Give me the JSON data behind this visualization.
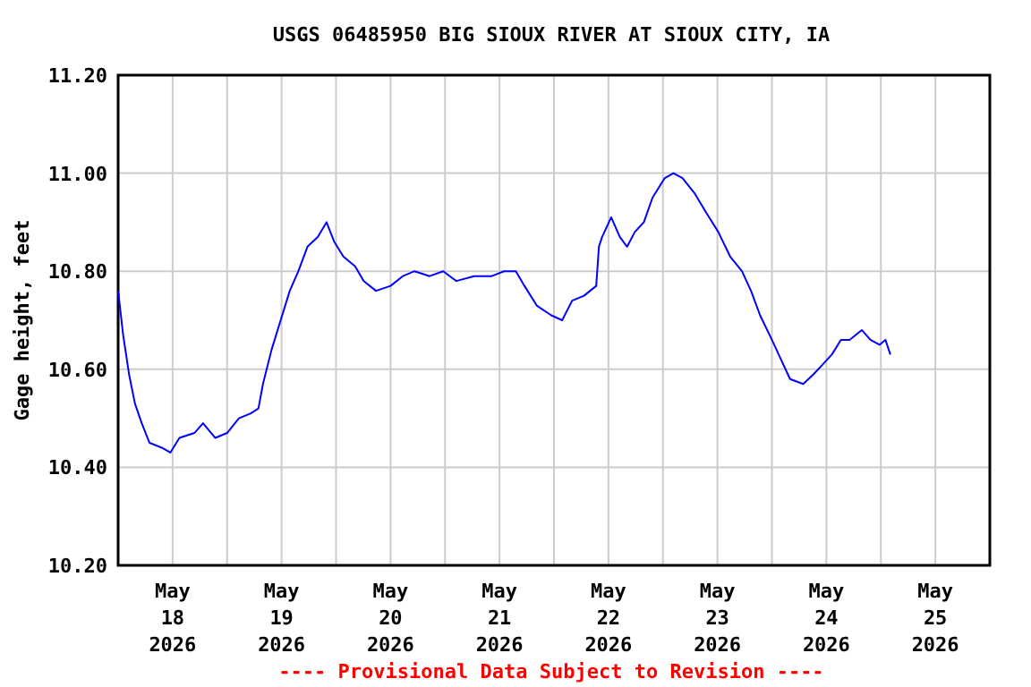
{
  "chart_data": {
    "type": "line",
    "title": "USGS 06485950 BIG SIOUX RIVER AT SIOUX CITY,  IA",
    "ylabel": "Gage height, feet",
    "annotations": [
      "---- Provisional Data Subject to Revision ----"
    ],
    "xlim": [
      "2026-05-18T00:00",
      "2026-05-26T00:00"
    ],
    "xticks": [
      {
        "value": "2026-05-18T00:00",
        "label": null
      },
      {
        "value": "2026-05-18T12:00",
        "label": "May\n18\n2026"
      },
      {
        "value": "2026-05-19T00:00",
        "label": null
      },
      {
        "value": "2026-05-19T12:00",
        "label": "May\n19\n2026"
      },
      {
        "value": "2026-05-20T00:00",
        "label": null
      },
      {
        "value": "2026-05-20T12:00",
        "label": "May\n20\n2026"
      },
      {
        "value": "2026-05-21T00:00",
        "label": null
      },
      {
        "value": "2026-05-21T12:00",
        "label": "May\n21\n2026"
      },
      {
        "value": "2026-05-22T00:00",
        "label": null
      },
      {
        "value": "2026-05-22T12:00",
        "label": "May\n22\n2026"
      },
      {
        "value": "2026-05-23T00:00",
        "label": null
      },
      {
        "value": "2026-05-23T12:00",
        "label": "May\n23\n2026"
      },
      {
        "value": "2026-05-24T00:00",
        "label": null
      },
      {
        "value": "2026-05-24T12:00",
        "label": "May\n24\n2026"
      },
      {
        "value": "2026-05-25T00:00",
        "label": null
      },
      {
        "value": "2026-05-25T12:00",
        "label": "May\n25\n2026"
      },
      {
        "value": "2026-05-26T00:00",
        "label": null
      }
    ],
    "ylim": [
      10.2,
      11.2
    ],
    "yticks": [
      {
        "value": 10.2,
        "label": "10.20"
      },
      {
        "value": 10.4,
        "label": "10.40"
      },
      {
        "value": 10.6,
        "label": "10.60"
      },
      {
        "value": 10.8,
        "label": "10.80"
      },
      {
        "value": 11.0,
        "label": "11.00"
      },
      {
        "value": 11.2,
        "label": "11.20"
      }
    ],
    "grid": true,
    "marker": "none",
    "line_style": "solid",
    "series": [
      {
        "color": "#0000ff",
        "x": [
          "2026-05-18T00:00",
          "2026-05-18T01:06",
          "2026-05-18T02:24",
          "2026-05-18T03:42",
          "2026-05-18T05:12",
          "2026-05-18T06:54",
          "2026-05-18T09:36",
          "2026-05-18T11:30",
          "2026-05-18T13:30",
          "2026-05-18T16:48",
          "2026-05-18T18:42",
          "2026-05-18T21:24",
          "2026-05-19T00:00",
          "2026-05-19T02:36",
          "2026-05-19T05:12",
          "2026-05-19T06:54",
          "2026-05-19T07:54",
          "2026-05-19T09:48",
          "2026-05-19T11:48",
          "2026-05-19T13:48",
          "2026-05-19T15:42",
          "2026-05-19T17:42",
          "2026-05-19T20:00",
          "2026-05-19T21:54",
          "2026-05-19T23:36",
          "2026-05-20T01:36",
          "2026-05-20T04:12",
          "2026-05-20T06:06",
          "2026-05-20T08:48",
          "2026-05-20T12:00",
          "2026-05-20T14:42",
          "2026-05-20T17:18",
          "2026-05-20T20:36",
          "2026-05-20T23:36",
          "2026-05-21T02:30",
          "2026-05-21T06:24",
          "2026-05-21T10:18",
          "2026-05-21T13:00",
          "2026-05-21T15:36",
          "2026-05-21T17:30",
          "2026-05-21T20:12",
          "2026-05-21T23:24",
          "2026-05-22T01:48",
          "2026-05-22T04:00",
          "2026-05-22T06:36",
          "2026-05-22T09:18",
          "2026-05-22T09:54",
          "2026-05-22T10:36",
          "2026-05-22T12:36",
          "2026-05-22T14:30",
          "2026-05-22T16:06",
          "2026-05-22T17:48",
          "2026-05-22T19:48",
          "2026-05-22T21:42",
          "2026-05-23T00:24",
          "2026-05-23T02:18",
          "2026-05-23T04:18",
          "2026-05-23T06:54",
          "2026-05-23T09:30",
          "2026-05-23T12:12",
          "2026-05-23T14:48",
          "2026-05-23T17:24",
          "2026-05-23T19:24",
          "2026-05-23T21:24",
          "2026-05-24T00:00",
          "2026-05-24T02:00",
          "2026-05-24T04:00",
          "2026-05-24T06:54",
          "2026-05-24T09:12",
          "2026-05-24T11:12",
          "2026-05-24T13:12",
          "2026-05-24T15:12",
          "2026-05-24T17:06",
          "2026-05-24T19:48",
          "2026-05-24T21:42",
          "2026-05-24T23:42",
          "2026-05-25T01:00",
          "2026-05-25T02:06"
        ],
        "values": [
          10.76,
          10.67,
          10.59,
          10.53,
          10.49,
          10.45,
          10.44,
          10.43,
          10.46,
          10.47,
          10.49,
          10.46,
          10.47,
          10.5,
          10.51,
          10.52,
          10.57,
          10.64,
          10.7,
          10.76,
          10.8,
          10.85,
          10.87,
          10.9,
          10.86,
          10.83,
          10.81,
          10.78,
          10.76,
          10.77,
          10.79,
          10.8,
          10.79,
          10.8,
          10.78,
          10.79,
          10.79,
          10.8,
          10.8,
          10.77,
          10.73,
          10.71,
          10.7,
          10.74,
          10.75,
          10.77,
          10.85,
          10.87,
          10.91,
          10.87,
          10.85,
          10.88,
          10.9,
          10.95,
          10.99,
          11.0,
          10.99,
          10.96,
          10.92,
          10.88,
          10.83,
          10.8,
          10.76,
          10.71,
          10.66,
          10.62,
          10.58,
          10.57,
          10.59,
          10.61,
          10.63,
          10.66,
          10.66,
          10.68,
          10.66,
          10.65,
          10.66,
          10.63
        ]
      }
    ]
  }
}
